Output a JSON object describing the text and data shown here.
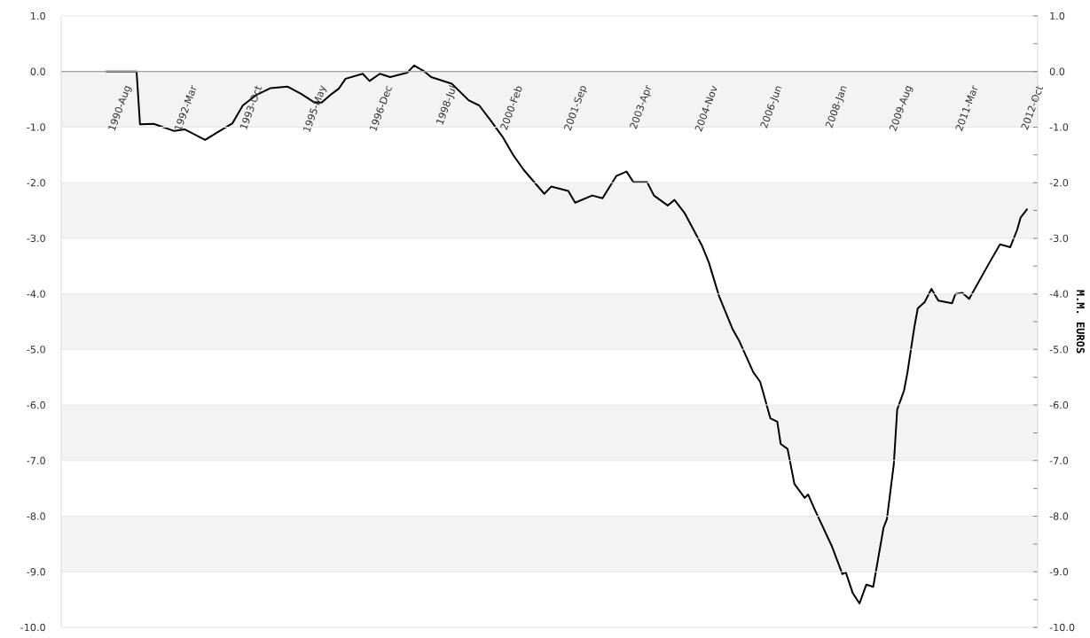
{
  "chart_data": {
    "type": "line",
    "y2label": "M.M. EUROS",
    "x": [
      "1990-03",
      "1990-12",
      "1991-01",
      "1991-05",
      "1991-11",
      "1992-02",
      "1992-08",
      "1992-12",
      "1993-04",
      "1993-07",
      "1993-11",
      "1994-03",
      "1994-08",
      "1994-12",
      "1995-04",
      "1995-06",
      "1995-09",
      "1995-11",
      "1996-01",
      "1996-06",
      "1996-08",
      "1996-11",
      "1997-02",
      "1997-07",
      "1997-09",
      "1997-12",
      "1998-02",
      "1998-08",
      "1999-01",
      "1999-04",
      "1999-07",
      "1999-11",
      "2000-02",
      "2000-05",
      "2000-11",
      "2001-01",
      "2001-06",
      "2001-08",
      "2002-01",
      "2002-04",
      "2002-08",
      "2002-11",
      "2003-01",
      "2003-05",
      "2003-07",
      "2003-11",
      "2004-01",
      "2004-04",
      "2004-09",
      "2004-11",
      "2005-02",
      "2005-06",
      "2005-08",
      "2005-12",
      "2006-02",
      "2006-05",
      "2006-07",
      "2006-08",
      "2006-10",
      "2006-12",
      "2007-03",
      "2007-04",
      "2007-06",
      "2007-11",
      "2008-02",
      "2008-03",
      "2008-05",
      "2008-07",
      "2008-09",
      "2008-11",
      "2009-02",
      "2009-03",
      "2009-05",
      "2009-06",
      "2009-08",
      "2009-09",
      "2009-11",
      "2009-12",
      "2010-02",
      "2010-04",
      "2010-06",
      "2010-10",
      "2010-11",
      "2011-01",
      "2011-03",
      "2011-09",
      "2011-12",
      "2012-03",
      "2012-05",
      "2012-06",
      "2012-08"
    ],
    "series": [
      {
        "color": "#000000",
        "values": [
          0.0,
          0.0,
          -0.95,
          -0.94,
          -1.07,
          -1.04,
          -1.23,
          -1.08,
          -0.93,
          -0.61,
          -0.42,
          -0.3,
          -0.27,
          -0.4,
          -0.56,
          -0.56,
          -0.4,
          -0.31,
          -0.13,
          -0.04,
          -0.17,
          -0.04,
          -0.1,
          -0.02,
          0.11,
          0.0,
          -0.1,
          -0.22,
          -0.52,
          -0.61,
          -0.85,
          -1.19,
          -1.51,
          -1.77,
          -2.2,
          -2.07,
          -2.15,
          -2.36,
          -2.23,
          -2.28,
          -1.88,
          -1.8,
          -1.99,
          -1.99,
          -2.23,
          -2.41,
          -2.31,
          -2.55,
          -3.13,
          -3.43,
          -4.04,
          -4.64,
          -4.86,
          -5.41,
          -5.58,
          -6.24,
          -6.3,
          -6.7,
          -6.79,
          -7.42,
          -7.67,
          -7.61,
          -7.89,
          -8.55,
          -9.04,
          -9.01,
          -9.38,
          -9.57,
          -9.23,
          -9.27,
          -8.21,
          -8.05,
          -7.07,
          -6.08,
          -5.74,
          -5.41,
          -4.6,
          -4.26,
          -4.15,
          -3.91,
          -4.12,
          -4.17,
          -4.0,
          -3.98,
          -4.09,
          -3.43,
          -3.11,
          -3.16,
          -2.85,
          -2.63,
          -2.47
        ]
      }
    ],
    "xlim": [
      "1989-02",
      "2012-11"
    ],
    "xticks": [
      {
        "value": "1990-08",
        "label": "1990-Aug"
      },
      {
        "value": "1992-03",
        "label": "1992-Mar"
      },
      {
        "value": "1993-10",
        "label": "1993-Oct"
      },
      {
        "value": "1995-05",
        "label": "1995-May"
      },
      {
        "value": "1996-12",
        "label": "1996-Dec"
      },
      {
        "value": "1998-07",
        "label": "1998-Jul"
      },
      {
        "value": "2000-02",
        "label": "2000-Feb"
      },
      {
        "value": "2001-09",
        "label": "2001-Sep"
      },
      {
        "value": "2003-04",
        "label": "2003-Apr"
      },
      {
        "value": "2004-11",
        "label": "2004-Nov"
      },
      {
        "value": "2006-06",
        "label": "2006-Jun"
      },
      {
        "value": "2008-01",
        "label": "2008-Jan"
      },
      {
        "value": "2009-08",
        "label": "2009-Aug"
      },
      {
        "value": "2011-03",
        "label": "2011-Mar"
      },
      {
        "value": "2012-10",
        "label": "2012-Oct"
      }
    ],
    "ylim": [
      -10,
      1
    ],
    "yticks": [
      {
        "value": 1,
        "label": "1.0"
      },
      {
        "value": 0,
        "label": "0.0"
      },
      {
        "value": -1,
        "label": "-1.0"
      },
      {
        "value": -2,
        "label": "-2.0"
      },
      {
        "value": -3,
        "label": "-3.0"
      },
      {
        "value": -4,
        "label": "-4.0"
      },
      {
        "value": -5,
        "label": "-5.0"
      },
      {
        "value": -6,
        "label": "-6.0"
      },
      {
        "value": -7,
        "label": "-7.0"
      },
      {
        "value": -8,
        "label": "-8.0"
      },
      {
        "value": -9,
        "label": "-9.0"
      },
      {
        "value": -10,
        "label": "-10.0"
      }
    ],
    "y2lim": [
      -10,
      1
    ],
    "y2ticks": [
      {
        "value": 1,
        "label": "1.0"
      },
      {
        "value": 0.5,
        "label": null
      },
      {
        "value": 0,
        "label": "0.0"
      },
      {
        "value": -0.5,
        "label": null
      },
      {
        "value": -1,
        "label": "-1.0"
      },
      {
        "value": -1.5,
        "label": null
      },
      {
        "value": -2,
        "label": "-2.0"
      },
      {
        "value": -2.5,
        "label": null
      },
      {
        "value": -3,
        "label": "-3.0"
      },
      {
        "value": -3.5,
        "label": null
      },
      {
        "value": -4,
        "label": "-4.0"
      },
      {
        "value": -4.5,
        "label": null
      },
      {
        "value": -5,
        "label": "-5.0"
      },
      {
        "value": -5.5,
        "label": null
      },
      {
        "value": -6,
        "label": "-6.0"
      },
      {
        "value": -6.5,
        "label": null
      },
      {
        "value": -7,
        "label": "-7.0"
      },
      {
        "value": -7.5,
        "label": null
      },
      {
        "value": -8,
        "label": "-8.0"
      },
      {
        "value": -8.5,
        "label": null
      },
      {
        "value": -9,
        "label": "-9.0"
      },
      {
        "value": -9.5,
        "label": null
      },
      {
        "value": -10,
        "label": "-10.0"
      }
    ],
    "grid": "y",
    "bands": [
      {
        "axis": "y",
        "from": 0,
        "to": -1,
        "color": "#f3f3f3"
      },
      {
        "axis": "y",
        "from": -2,
        "to": -3,
        "color": "#f3f3f3"
      },
      {
        "axis": "y",
        "from": -4,
        "to": -5,
        "color": "#f3f3f3"
      },
      {
        "axis": "y",
        "from": -6,
        "to": -7,
        "color": "#f3f3f3"
      },
      {
        "axis": "y",
        "from": -8,
        "to": -9,
        "color": "#f3f3f3"
      }
    ]
  }
}
